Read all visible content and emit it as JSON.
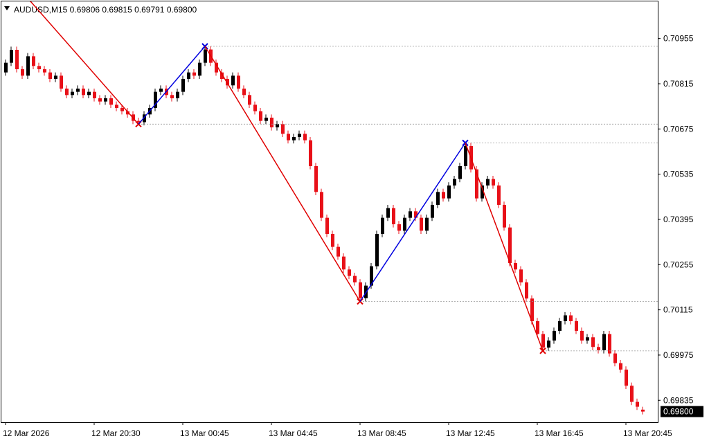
{
  "chart_data": {
    "type": "candlestick",
    "title": "AUDUSD,M15  0.69806 0.69815 0.69791 0.69800",
    "categories": [
      "12 Mar 2026",
      null,
      null,
      null,
      null,
      null,
      null,
      null,
      null,
      null,
      null,
      null,
      null,
      null,
      null,
      null,
      "12 Mar 20:30",
      null,
      null,
      null,
      null,
      null,
      null,
      null,
      null,
      null,
      null,
      null,
      null,
      null,
      null,
      null,
      "13 Mar 00:45",
      null,
      null,
      null,
      null,
      null,
      null,
      null,
      null,
      null,
      null,
      null,
      null,
      null,
      null,
      null,
      "13 Mar 04:45",
      null,
      null,
      null,
      null,
      null,
      null,
      null,
      null,
      null,
      null,
      null,
      null,
      null,
      null,
      null,
      "13 Mar 08:45",
      null,
      null,
      null,
      null,
      null,
      null,
      null,
      null,
      null,
      null,
      null,
      null,
      null,
      null,
      null,
      "13 Mar 12:45",
      null,
      null,
      null,
      null,
      null,
      null,
      null,
      null,
      null,
      null,
      null,
      null,
      null,
      null,
      null,
      "13 Mar 16:45",
      null,
      null,
      null,
      null,
      null,
      null,
      null,
      null,
      null,
      null,
      null,
      null,
      null,
      null,
      null,
      "13 Mar 20:45",
      null,
      null,
      null
    ],
    "open": [
      0.7085,
      0.7088,
      0.7092,
      0.7086,
      0.7084,
      0.709,
      0.7087,
      0.7086,
      0.7085,
      0.7083,
      0.7084,
      0.708,
      0.7078,
      0.7079,
      0.708,
      0.7078,
      0.7079,
      0.7077,
      0.7076,
      0.7077,
      0.7075,
      0.7074,
      0.7073,
      0.7072,
      0.707,
      0.70696,
      0.7072,
      0.7074,
      0.7079,
      0.708,
      0.7078,
      0.7077,
      0.7079,
      0.7083,
      0.7085,
      0.7084,
      0.7088,
      0.70921,
      0.7088,
      0.7085,
      0.7083,
      0.7081,
      0.7084,
      0.708,
      0.7078,
      0.7075,
      0.7073,
      0.707,
      0.7071,
      0.7068,
      0.7069,
      0.7066,
      0.7064,
      0.7065,
      0.7066,
      0.7064,
      0.7056,
      0.7048,
      0.704,
      0.7035,
      0.7031,
      0.7028,
      0.7024,
      0.7022,
      0.702,
      0.70151,
      0.7019,
      0.7025,
      0.7035,
      0.704,
      0.7043,
      0.7038,
      0.7036,
      0.704,
      0.7042,
      0.704,
      0.7036,
      0.704,
      0.7044,
      0.7048,
      0.7046,
      0.705,
      0.7052,
      0.7056,
      0.70622,
      0.7055,
      0.7046,
      0.705,
      0.7052,
      0.705,
      0.7044,
      0.7037,
      0.7026,
      0.7024,
      0.702,
      0.7015,
      0.7008,
      0.7004,
      0.69998,
      0.7002,
      0.7005,
      0.7008,
      0.70098,
      0.7008,
      0.7005,
      0.7002,
      0.7003,
      0.7,
      0.6999,
      0.7004,
      0.6998,
      0.6995,
      0.6993,
      0.6988,
      0.6983,
      0.69806
    ],
    "high": [
      0.7089,
      0.7093,
      0.7093,
      0.7087,
      0.7091,
      0.7091,
      0.7088,
      0.7087,
      0.7086,
      0.7085,
      0.7085,
      0.7081,
      0.708,
      0.7081,
      0.7081,
      0.708,
      0.708,
      0.7078,
      0.7078,
      0.7078,
      0.7076,
      0.7075,
      0.7074,
      0.7073,
      0.7071,
      0.7073,
      0.7075,
      0.708,
      0.7081,
      0.7081,
      0.7079,
      0.708,
      0.7084,
      0.7086,
      0.7086,
      0.7089,
      0.70931,
      0.70931,
      0.7089,
      0.7086,
      0.7084,
      0.7085,
      0.7085,
      0.7081,
      0.7079,
      0.7076,
      0.7074,
      0.7072,
      0.7072,
      0.707,
      0.707,
      0.7067,
      0.7066,
      0.7067,
      0.7067,
      0.7065,
      0.7057,
      0.7049,
      0.7041,
      0.7036,
      0.7032,
      0.7029,
      0.7025,
      0.7023,
      0.7021,
      0.702,
      0.7026,
      0.7036,
      0.7041,
      0.7044,
      0.7044,
      0.7039,
      0.7041,
      0.7043,
      0.7043,
      0.7041,
      0.7041,
      0.7045,
      0.7049,
      0.7049,
      0.7051,
      0.7053,
      0.7057,
      0.70632,
      0.70632,
      0.7056,
      0.7051,
      0.7053,
      0.7053,
      0.7051,
      0.7045,
      0.7038,
      0.7027,
      0.7025,
      0.7021,
      0.7016,
      0.7009,
      0.7005,
      0.7003,
      0.7006,
      0.7009,
      0.70108,
      0.70108,
      0.7009,
      0.7006,
      0.7004,
      0.7004,
      0.7001,
      0.7005,
      0.7005,
      0.6999,
      0.6996,
      0.6994,
      0.6989,
      0.6984,
      0.69815
    ],
    "low": [
      0.7084,
      0.7087,
      0.7085,
      0.7083,
      0.7083,
      0.7086,
      0.7085,
      0.7084,
      0.7082,
      0.7082,
      0.7079,
      0.7077,
      0.7077,
      0.7078,
      0.7077,
      0.7077,
      0.7076,
      0.7075,
      0.7075,
      0.7074,
      0.7073,
      0.7072,
      0.7071,
      0.7069,
      0.70686,
      0.70686,
      0.7071,
      0.7073,
      0.7078,
      0.7077,
      0.7076,
      0.7076,
      0.7078,
      0.7082,
      0.7083,
      0.7083,
      0.7087,
      0.7087,
      0.7084,
      0.7082,
      0.708,
      0.708,
      0.7079,
      0.7077,
      0.7074,
      0.7072,
      0.7069,
      0.7069,
      0.7067,
      0.7067,
      0.7065,
      0.7063,
      0.7063,
      0.7064,
      0.7063,
      0.7055,
      0.7047,
      0.7039,
      0.7034,
      0.703,
      0.7027,
      0.7023,
      0.7021,
      0.7019,
      0.70141,
      0.70141,
      0.7018,
      0.7024,
      0.7034,
      0.7039,
      0.7037,
      0.7035,
      0.7035,
      0.7039,
      0.7039,
      0.7035,
      0.7035,
      0.7039,
      0.7043,
      0.7045,
      0.7045,
      0.7049,
      0.7051,
      0.7055,
      0.7054,
      0.7045,
      0.7045,
      0.7049,
      0.7049,
      0.7043,
      0.7036,
      0.7025,
      0.7023,
      0.7019,
      0.7014,
      0.7007,
      0.7003,
      0.69988,
      0.69988,
      0.7001,
      0.7004,
      0.7007,
      0.7007,
      0.7004,
      0.7001,
      0.7001,
      0.6999,
      0.6998,
      0.6998,
      0.6997,
      0.6994,
      0.6992,
      0.6987,
      0.6982,
      0.69805,
      0.69791
    ],
    "close": [
      0.7088,
      0.7092,
      0.7086,
      0.7084,
      0.709,
      0.7087,
      0.7086,
      0.7085,
      0.7083,
      0.7084,
      0.708,
      0.7078,
      0.7079,
      0.708,
      0.7078,
      0.7079,
      0.7077,
      0.7076,
      0.7077,
      0.7075,
      0.7074,
      0.7073,
      0.7072,
      0.707,
      0.70696,
      0.7072,
      0.7074,
      0.7079,
      0.708,
      0.7078,
      0.7077,
      0.7079,
      0.7083,
      0.7085,
      0.7084,
      0.7088,
      0.70921,
      0.7088,
      0.7085,
      0.7083,
      0.7081,
      0.7084,
      0.708,
      0.7078,
      0.7075,
      0.7073,
      0.707,
      0.7071,
      0.7068,
      0.7069,
      0.7066,
      0.7064,
      0.7065,
      0.7066,
      0.7064,
      0.7056,
      0.7048,
      0.704,
      0.7035,
      0.7031,
      0.7028,
      0.7024,
      0.7022,
      0.702,
      0.70151,
      0.7019,
      0.7025,
      0.7035,
      0.704,
      0.7043,
      0.7038,
      0.7036,
      0.704,
      0.7042,
      0.704,
      0.7036,
      0.704,
      0.7044,
      0.7048,
      0.7046,
      0.705,
      0.7052,
      0.7056,
      0.70622,
      0.7055,
      0.7046,
      0.705,
      0.7052,
      0.705,
      0.7044,
      0.7037,
      0.7026,
      0.7024,
      0.702,
      0.7015,
      0.7008,
      0.7004,
      0.69998,
      0.7002,
      0.7005,
      0.7008,
      0.70098,
      0.7008,
      0.7005,
      0.7002,
      0.7003,
      0.7,
      0.6999,
      0.7004,
      0.6998,
      0.6995,
      0.6993,
      0.6988,
      0.6983,
      0.69815,
      0.698
    ],
    "up_color": "#000000",
    "down_color": "#e81018",
    "zigzag": {
      "values": [
        0.71158,
        null,
        null,
        null,
        null,
        null,
        null,
        null,
        null,
        null,
        null,
        null,
        null,
        null,
        null,
        null,
        null,
        null,
        null,
        null,
        null,
        null,
        null,
        null,
        0.7069,
        null,
        null,
        null,
        null,
        null,
        null,
        null,
        null,
        null,
        null,
        null,
        0.70931,
        null,
        null,
        null,
        null,
        null,
        null,
        null,
        null,
        null,
        null,
        null,
        null,
        null,
        null,
        null,
        null,
        null,
        null,
        null,
        null,
        null,
        null,
        null,
        null,
        null,
        null,
        null,
        0.70141,
        null,
        null,
        null,
        null,
        null,
        null,
        null,
        null,
        null,
        null,
        null,
        null,
        null,
        null,
        null,
        null,
        null,
        null,
        0.70632,
        null,
        null,
        null,
        null,
        null,
        null,
        null,
        null,
        null,
        null,
        null,
        null,
        null,
        0.69988,
        null,
        null,
        null,
        null,
        null,
        null,
        null,
        null,
        null,
        null,
        null,
        null,
        null,
        null,
        null,
        null,
        null,
        null
      ],
      "up_color": "#0000e0",
      "down_color": "#e00000"
    },
    "ylim": [
      0.69767,
      0.7107
    ],
    "yticks": [
      0.70955,
      0.70815,
      0.70675,
      0.70535,
      0.70395,
      0.70255,
      0.70115,
      0.69975,
      0.69835
    ],
    "last_price": {
      "value": 0.698,
      "label": "0.69800"
    }
  }
}
